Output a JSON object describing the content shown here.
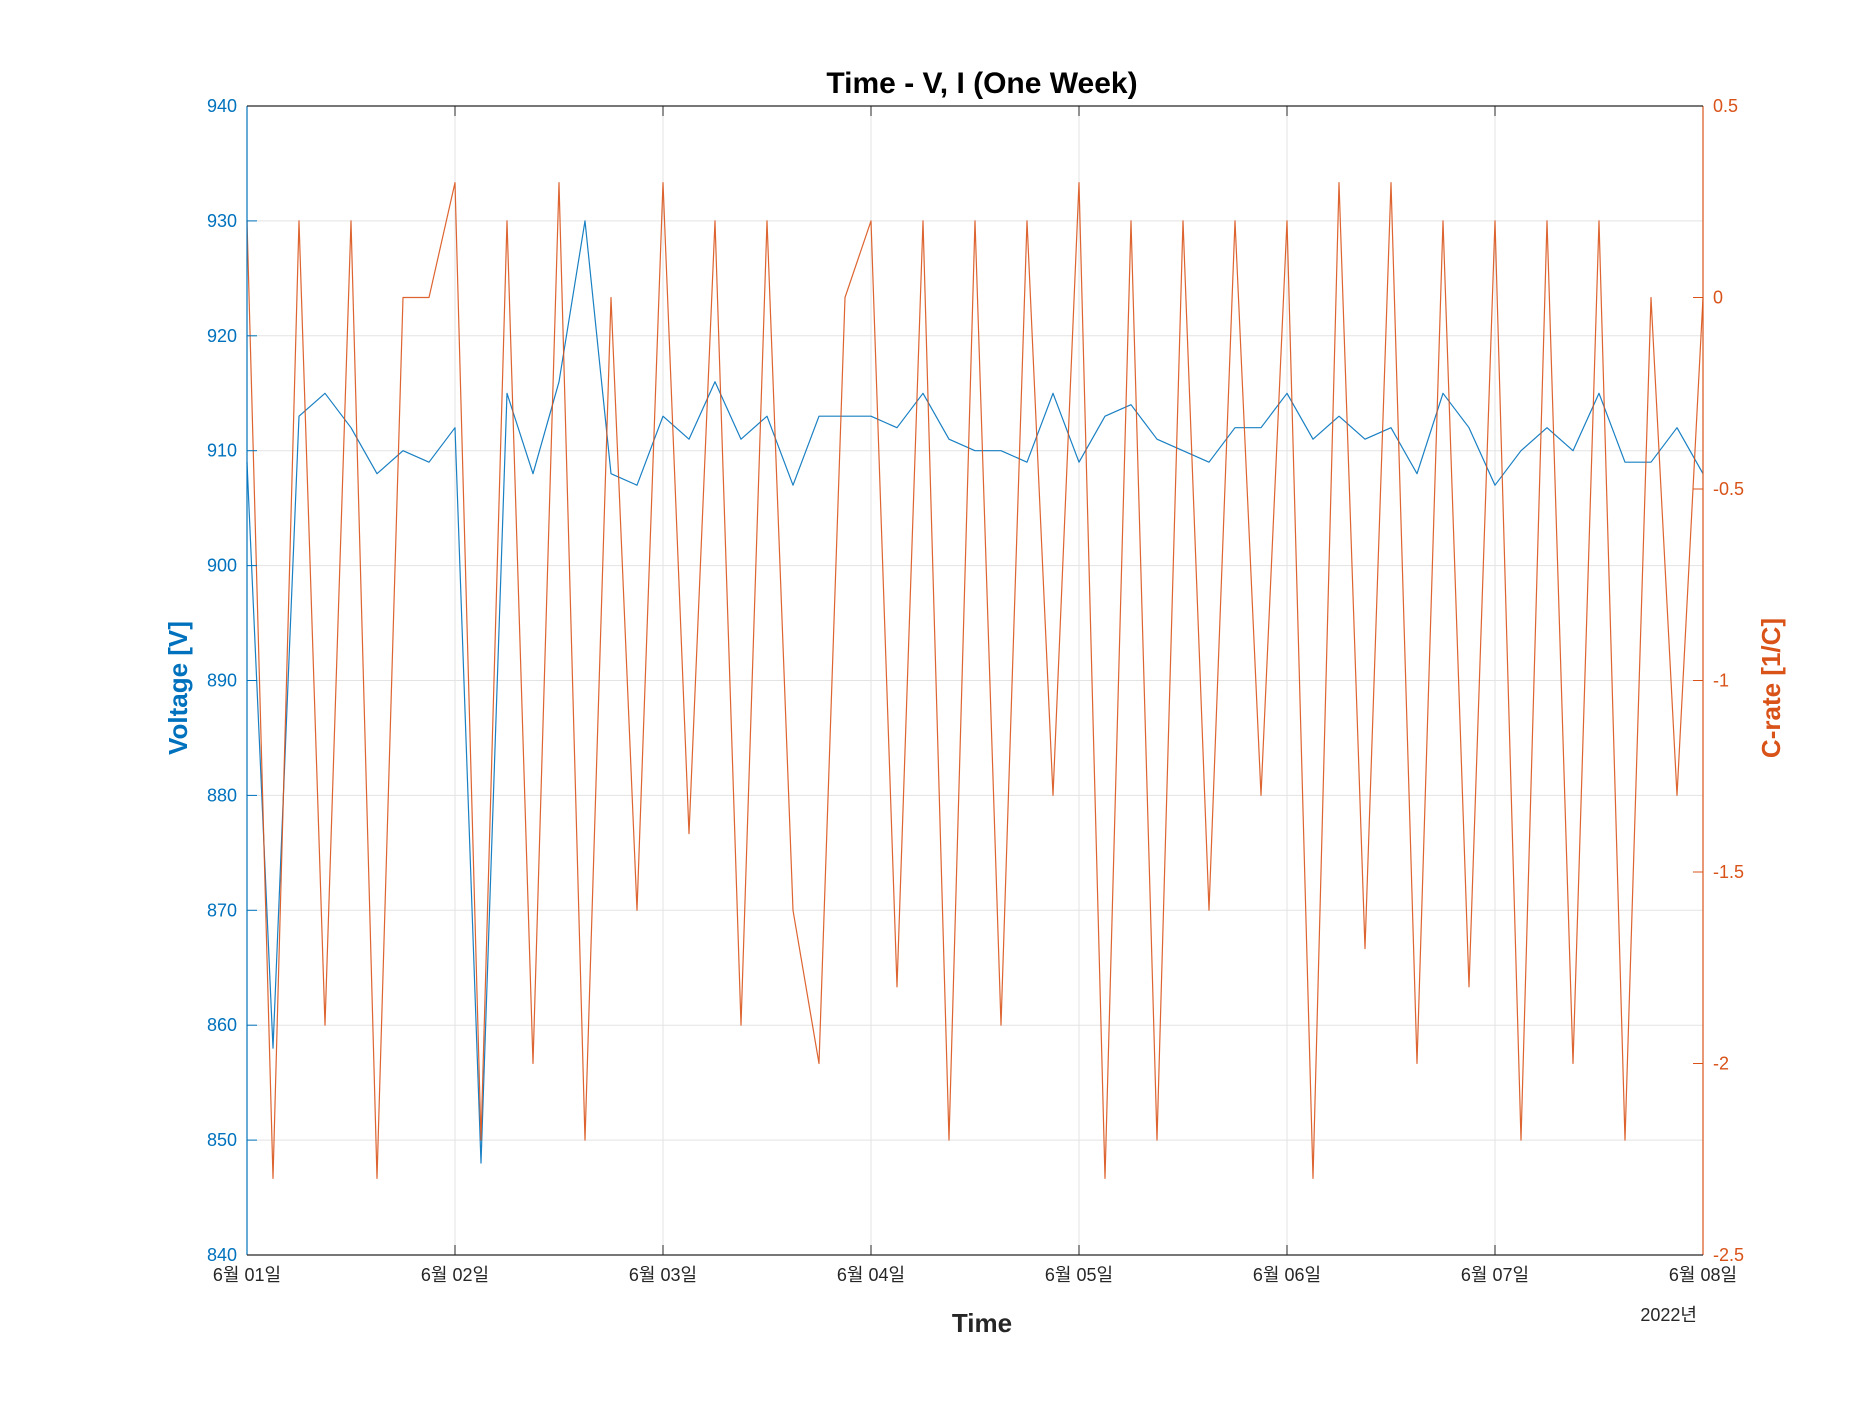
{
  "chart_data": {
    "type": "line",
    "title": "Time - V, I (One Week)",
    "xlabel": "Time",
    "x_year_label": "2022년",
    "x_ticks": [
      "6월 01일",
      "6월 02일",
      "6월 03일",
      "6월 04일",
      "6월 05일",
      "6월 06일",
      "6월 07일",
      "6월 08일"
    ],
    "xlim": [
      "2022-06-01",
      "2022-06-08"
    ],
    "grid": true,
    "left_axis": {
      "label": "Voltage [V]",
      "color": "#0072BD",
      "ylim": [
        840,
        940
      ],
      "ticks": [
        "840",
        "850",
        "860",
        "870",
        "880",
        "890",
        "900",
        "910",
        "920",
        "930",
        "940"
      ]
    },
    "right_axis": {
      "label": "C-rate [1/C]",
      "color": "#D95319",
      "ylim": [
        -2.5,
        0.5
      ],
      "ticks": [
        "-2.5",
        "-2",
        "-1.5",
        "-1",
        "-0.5",
        "0",
        "0.5"
      ]
    },
    "series": [
      {
        "axis": "left",
        "color": "#0072BD",
        "x": [
          "06-01 00:00",
          "06-01 03:00",
          "06-01 06:00",
          "06-01 09:00",
          "06-01 12:00",
          "06-01 15:00",
          "06-01 18:00",
          "06-01 21:00",
          "06-02 00:00",
          "06-02 03:00",
          "06-02 06:00",
          "06-02 09:00",
          "06-02 12:00",
          "06-02 15:00",
          "06-02 18:00",
          "06-02 21:00",
          "06-03 00:00",
          "06-03 03:00",
          "06-03 06:00",
          "06-03 09:00",
          "06-03 12:00",
          "06-03 15:00",
          "06-03 18:00",
          "06-03 21:00",
          "06-04 00:00",
          "06-04 03:00",
          "06-04 06:00",
          "06-04 09:00",
          "06-04 12:00",
          "06-04 15:00",
          "06-04 18:00",
          "06-04 21:00",
          "06-05 00:00",
          "06-05 03:00",
          "06-05 06:00",
          "06-05 09:00",
          "06-05 12:00",
          "06-05 15:00",
          "06-05 18:00",
          "06-05 21:00",
          "06-06 00:00",
          "06-06 03:00",
          "06-06 06:00",
          "06-06 09:00",
          "06-06 12:00",
          "06-06 15:00",
          "06-06 18:00",
          "06-06 21:00",
          "06-07 00:00",
          "06-07 03:00",
          "06-07 06:00",
          "06-07 09:00",
          "06-07 12:00",
          "06-07 15:00",
          "06-07 18:00",
          "06-07 21:00",
          "06-08 00:00"
        ],
        "values": [
          909,
          858,
          913,
          915,
          912,
          908,
          910,
          909,
          912,
          848,
          915,
          908,
          916,
          930,
          908,
          907,
          913,
          911,
          916,
          911,
          913,
          907,
          913,
          913,
          913,
          912,
          915,
          911,
          910,
          910,
          909,
          915,
          909,
          913,
          914,
          911,
          910,
          909,
          912,
          912,
          915,
          911,
          913,
          911,
          912,
          908,
          915,
          912,
          907,
          910,
          912,
          910,
          915,
          909,
          909,
          912,
          908
        ]
      },
      {
        "axis": "right",
        "color": "#D95319",
        "x": [
          "06-01 00:00",
          "06-01 03:00",
          "06-01 06:00",
          "06-01 09:00",
          "06-01 12:00",
          "06-01 15:00",
          "06-01 18:00",
          "06-01 21:00",
          "06-02 00:00",
          "06-02 03:00",
          "06-02 06:00",
          "06-02 09:00",
          "06-02 12:00",
          "06-02 15:00",
          "06-02 18:00",
          "06-02 21:00",
          "06-03 00:00",
          "06-03 03:00",
          "06-03 06:00",
          "06-03 09:00",
          "06-03 12:00",
          "06-03 15:00",
          "06-03 18:00",
          "06-03 21:00",
          "06-04 00:00",
          "06-04 03:00",
          "06-04 06:00",
          "06-04 09:00",
          "06-04 12:00",
          "06-04 15:00",
          "06-04 18:00",
          "06-04 21:00",
          "06-05 00:00",
          "06-05 03:00",
          "06-05 06:00",
          "06-05 09:00",
          "06-05 12:00",
          "06-05 15:00",
          "06-05 18:00",
          "06-05 21:00",
          "06-06 00:00",
          "06-06 03:00",
          "06-06 06:00",
          "06-06 09:00",
          "06-06 12:00",
          "06-06 15:00",
          "06-06 18:00",
          "06-06 21:00",
          "06-07 00:00",
          "06-07 03:00",
          "06-07 06:00",
          "06-07 09:00",
          "06-07 12:00",
          "06-07 15:00",
          "06-07 18:00",
          "06-07 21:00",
          "06-08 00:00"
        ],
        "values": [
          0.2,
          -2.3,
          0.2,
          -1.9,
          0.2,
          -2.3,
          0.0,
          0.0,
          0.3,
          -2.2,
          0.2,
          -2.0,
          0.3,
          -2.2,
          0.0,
          -1.6,
          0.3,
          -1.4,
          0.2,
          -1.9,
          0.2,
          -1.6,
          -2.0,
          0.0,
          0.2,
          -1.8,
          0.2,
          -2.2,
          0.2,
          -1.9,
          0.2,
          -1.3,
          0.3,
          -2.3,
          0.2,
          -2.2,
          0.2,
          -1.6,
          0.2,
          -1.3,
          0.2,
          -2.3,
          0.3,
          -1.7,
          0.3,
          -2.0,
          0.2,
          -1.8,
          0.2,
          -2.2,
          0.2,
          -2.0,
          0.2,
          -2.2,
          0.0,
          -1.3,
          0.0
        ]
      }
    ]
  }
}
